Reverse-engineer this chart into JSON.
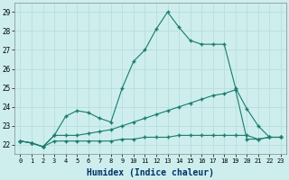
{
  "xlabel": "Humidex (Indice chaleur)",
  "background_color": "#cdeeed",
  "grid_color": "#b8dedd",
  "line_color": "#1a7a6e",
  "x_data": [
    0,
    1,
    2,
    3,
    4,
    5,
    6,
    7,
    8,
    9,
    10,
    11,
    12,
    13,
    14,
    15,
    16,
    17,
    18,
    19,
    20,
    21,
    22,
    23
  ],
  "series1": [
    22.2,
    22.1,
    21.9,
    22.5,
    23.5,
    23.8,
    23.7,
    23.4,
    23.2,
    25.0,
    26.4,
    27.0,
    28.1,
    29.0,
    28.2,
    27.5,
    27.3,
    27.3,
    27.3,
    25.0,
    23.9,
    23.0,
    22.4,
    22.4
  ],
  "series2": [
    22.2,
    22.1,
    21.9,
    22.5,
    22.5,
    22.5,
    22.6,
    22.7,
    22.8,
    23.0,
    23.2,
    23.4,
    23.6,
    23.8,
    24.0,
    24.2,
    24.4,
    24.6,
    24.7,
    24.9,
    22.3,
    22.3,
    22.4,
    22.4
  ],
  "series3": [
    22.2,
    22.1,
    21.9,
    22.2,
    22.2,
    22.2,
    22.2,
    22.2,
    22.2,
    22.3,
    22.3,
    22.4,
    22.4,
    22.4,
    22.5,
    22.5,
    22.5,
    22.5,
    22.5,
    22.5,
    22.5,
    22.3,
    22.4,
    22.4
  ],
  "ylim": [
    21.5,
    29.5
  ],
  "yticks": [
    22,
    23,
    24,
    25,
    26,
    27,
    28,
    29
  ],
  "xlim": [
    -0.5,
    23.5
  ]
}
